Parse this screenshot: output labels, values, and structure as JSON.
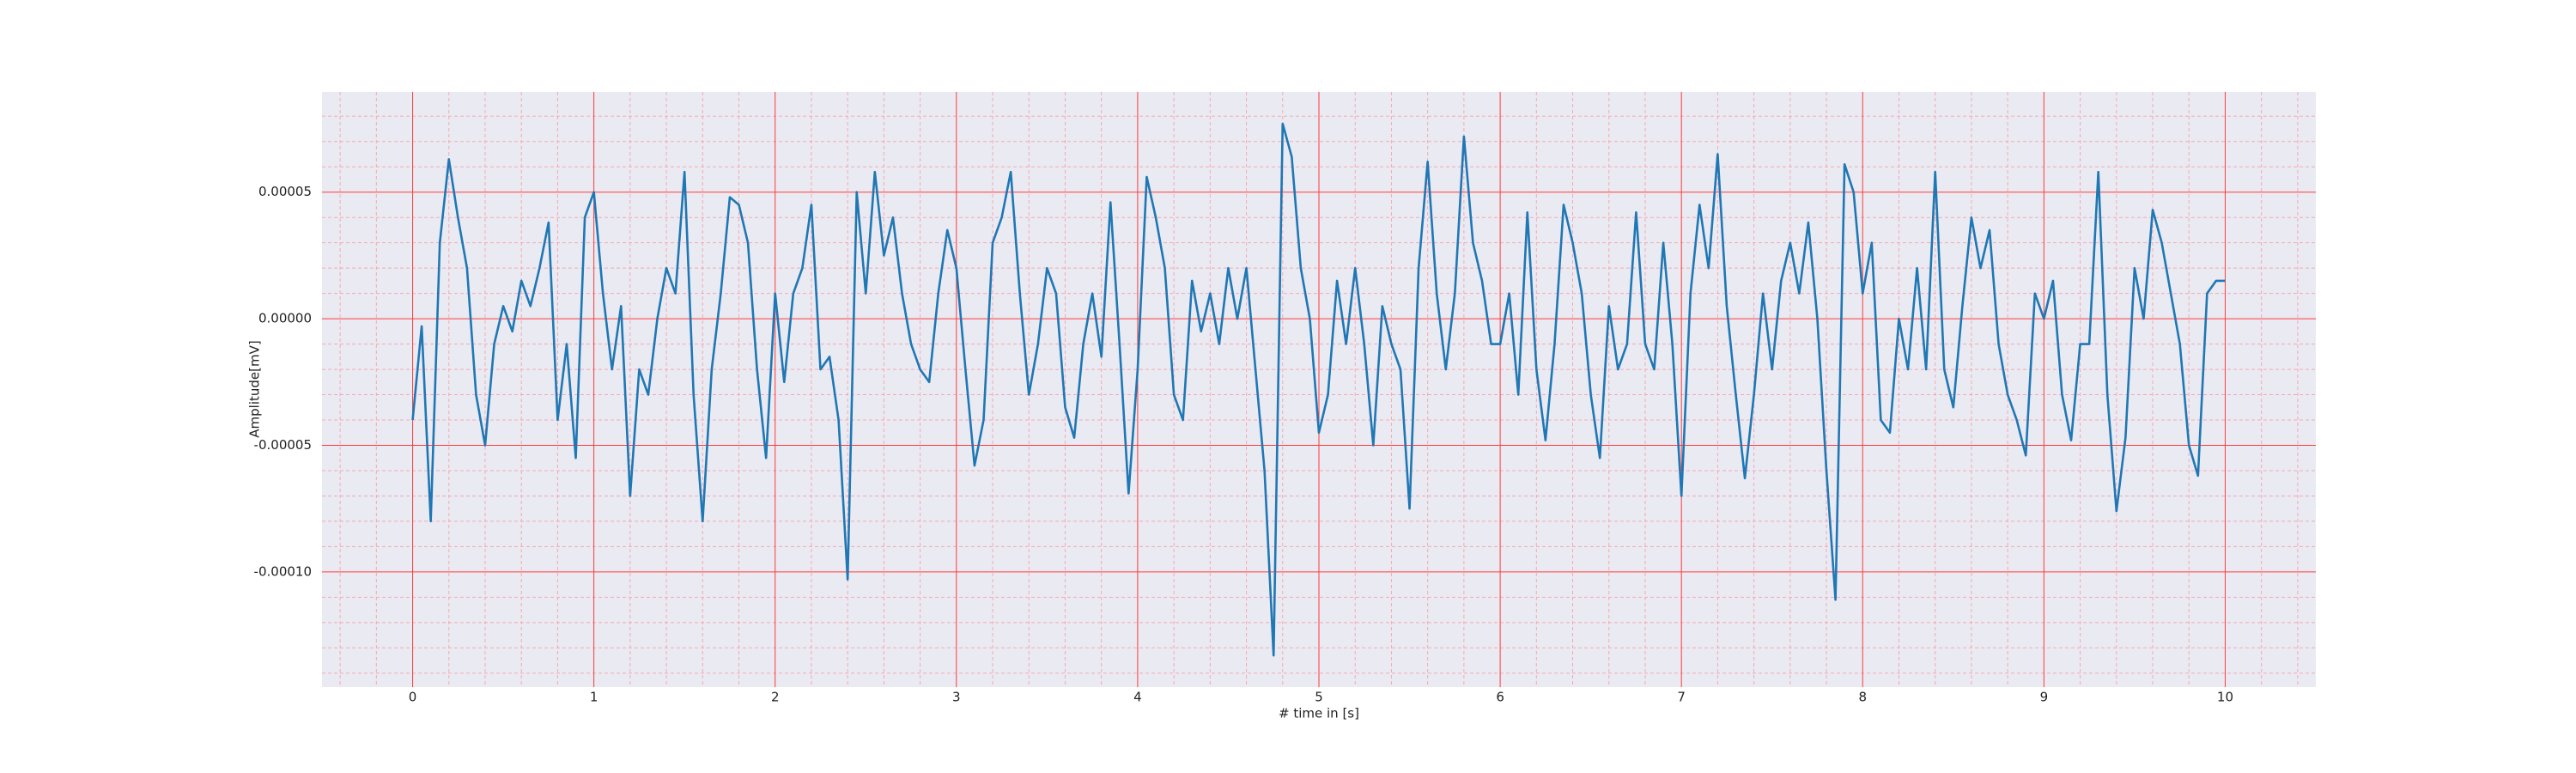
{
  "chart_data": {
    "type": "line",
    "x_label": "# time in [s]",
    "y_label": "Amplitude[mV]",
    "xlim": [
      -0.5,
      10.5
    ],
    "ylim": [
      -0.0001455,
      8.96e-05
    ],
    "xticks": [
      0,
      1,
      2,
      3,
      4,
      5,
      6,
      7,
      8,
      9,
      10
    ],
    "yticks": [
      {
        "value": -0.0001,
        "label": "-0.00010"
      },
      {
        "value": -5e-05,
        "label": "-0.00005"
      },
      {
        "value": 0,
        "label": "0.00000"
      },
      {
        "value": 5e-05,
        "label": "0.00005"
      }
    ],
    "grid": true,
    "grid_color": "#ff3b3b",
    "minor_grid": true,
    "minor_divisions": 5,
    "minor_grid_color": "#f4a9b4",
    "background": "#eaeaf2",
    "x": [
      0,
      0.05,
      0.1,
      0.15,
      0.2,
      0.25,
      0.3,
      0.35,
      0.4,
      0.45,
      0.5,
      0.55,
      0.6,
      0.65,
      0.7,
      0.75,
      0.8,
      0.85,
      0.9,
      0.95,
      1,
      1.05,
      1.1,
      1.15,
      1.2,
      1.25,
      1.3,
      1.35,
      1.4,
      1.45,
      1.5,
      1.55,
      1.6,
      1.65,
      1.7,
      1.75,
      1.8,
      1.85,
      1.9,
      1.95,
      2,
      2.05,
      2.1,
      2.15,
      2.2,
      2.25,
      2.3,
      2.35,
      2.4,
      2.45,
      2.5,
      2.55,
      2.6,
      2.65,
      2.7,
      2.75,
      2.8,
      2.85,
      2.9,
      2.95,
      3,
      3.05,
      3.1,
      3.15,
      3.2,
      3.25,
      3.3,
      3.35,
      3.4,
      3.45,
      3.5,
      3.55,
      3.6,
      3.65,
      3.7,
      3.75,
      3.8,
      3.85,
      3.9,
      3.95,
      4,
      4.05,
      4.1,
      4.15,
      4.2,
      4.25,
      4.3,
      4.35,
      4.4,
      4.45,
      4.5,
      4.55,
      4.6,
      4.65,
      4.7,
      4.75,
      4.8,
      4.85,
      4.9,
      4.95,
      5,
      5.05,
      5.1,
      5.15,
      5.2,
      5.25,
      5.3,
      5.35,
      5.4,
      5.45,
      5.5,
      5.55,
      5.6,
      5.65,
      5.7,
      5.75,
      5.8,
      5.85,
      5.9,
      5.95,
      6,
      6.05,
      6.1,
      6.15,
      6.2,
      6.25,
      6.3,
      6.35,
      6.4,
      6.45,
      6.5,
      6.55,
      6.6,
      6.65,
      6.7,
      6.75,
      6.8,
      6.85,
      6.9,
      6.95,
      7,
      7.05,
      7.1,
      7.15,
      7.2,
      7.25,
      7.3,
      7.35,
      7.4,
      7.45,
      7.5,
      7.55,
      7.6,
      7.65,
      7.7,
      7.75,
      7.8,
      7.85,
      7.9,
      7.95,
      8,
      8.05,
      8.1,
      8.15,
      8.2,
      8.25,
      8.3,
      8.35,
      8.4,
      8.45,
      8.5,
      8.55,
      8.6,
      8.65,
      8.7,
      8.75,
      8.8,
      8.85,
      8.9,
      8.95,
      9,
      9.05,
      9.1,
      9.15,
      9.2,
      9.25,
      9.3,
      9.35,
      9.4,
      9.45,
      9.5,
      9.55,
      9.6,
      9.65,
      9.7,
      9.75,
      9.8,
      9.85,
      9.9,
      9.95,
      10
    ],
    "series": [
      {
        "color": "#1f77b4",
        "values": [
          -4e-05,
          -3e-06,
          -8e-05,
          3e-05,
          6.3e-05,
          4e-05,
          2e-05,
          -3e-05,
          -5e-05,
          -1e-05,
          5e-06,
          -5e-06,
          1.5e-05,
          5e-06,
          2e-05,
          3.8e-05,
          -4e-05,
          -1e-05,
          -5.5e-05,
          4e-05,
          5e-05,
          1e-05,
          -2e-05,
          5e-06,
          -7e-05,
          -2e-05,
          -3e-05,
          0,
          2e-05,
          1e-05,
          5.8e-05,
          -3e-05,
          -8e-05,
          -2e-05,
          1e-05,
          4.8e-05,
          4.5e-05,
          3e-05,
          -2e-05,
          -5.5e-05,
          1e-05,
          -2.5e-05,
          1e-05,
          2e-05,
          4.5e-05,
          -2e-05,
          -1.5e-05,
          -4e-05,
          -0.000103,
          5e-05,
          1e-05,
          5.8e-05,
          2.5e-05,
          4e-05,
          1e-05,
          -1e-05,
          -2e-05,
          -2.5e-05,
          1e-05,
          3.5e-05,
          2e-05,
          -2e-05,
          -5.8e-05,
          -4e-05,
          3e-05,
          4e-05,
          5.8e-05,
          1e-05,
          -3e-05,
          -1e-05,
          2e-05,
          1e-05,
          -3.5e-05,
          -4.7e-05,
          -1e-05,
          1e-05,
          -1.5e-05,
          4.6e-05,
          -1e-05,
          -6.9e-05,
          -2e-05,
          5.6e-05,
          4e-05,
          2e-05,
          -3e-05,
          -4e-05,
          1.5e-05,
          -5e-06,
          1e-05,
          -1e-05,
          2e-05,
          0,
          2e-05,
          -2e-05,
          -6e-05,
          -0.000133,
          7.7e-05,
          6.4e-05,
          2e-05,
          0,
          -4.5e-05,
          -3e-05,
          1.5e-05,
          -1e-05,
          2e-05,
          -1e-05,
          -5e-05,
          5e-06,
          -1e-05,
          -2e-05,
          -7.5e-05,
          2e-05,
          6.2e-05,
          1e-05,
          -2e-05,
          1e-05,
          7.2e-05,
          3e-05,
          1.5e-05,
          -1e-05,
          -1e-05,
          1e-05,
          -3e-05,
          4.2e-05,
          -2e-05,
          -4.8e-05,
          -1e-05,
          4.5e-05,
          3e-05,
          1e-05,
          -3e-05,
          -5.5e-05,
          5e-06,
          -2e-05,
          -1e-05,
          4.2e-05,
          -1e-05,
          -2e-05,
          3e-05,
          -1e-05,
          -7e-05,
          1e-05,
          4.5e-05,
          2e-05,
          6.5e-05,
          5e-06,
          -3e-05,
          -6.3e-05,
          -3e-05,
          1e-05,
          -2e-05,
          1.5e-05,
          3e-05,
          1e-05,
          3.8e-05,
          0,
          -6e-05,
          -0.000111,
          6.1e-05,
          5e-05,
          1e-05,
          3e-05,
          -4e-05,
          -4.5e-05,
          0,
          -2e-05,
          2e-05,
          -2e-05,
          5.8e-05,
          -2e-05,
          -3.5e-05,
          5e-06,
          4e-05,
          2e-05,
          3.5e-05,
          -1e-05,
          -3e-05,
          -4e-05,
          -5.4e-05,
          1e-05,
          0,
          1.5e-05,
          -3e-05,
          -4.8e-05,
          -1e-05,
          -1e-05,
          5.8e-05,
          -3e-05,
          -7.6e-05,
          -4.7e-05,
          2e-05,
          0,
          4.3e-05,
          3e-05,
          1e-05,
          -1e-05,
          -5e-05,
          -6.2e-05,
          1e-05,
          1.5e-05,
          1.5e-05
        ]
      }
    ]
  }
}
